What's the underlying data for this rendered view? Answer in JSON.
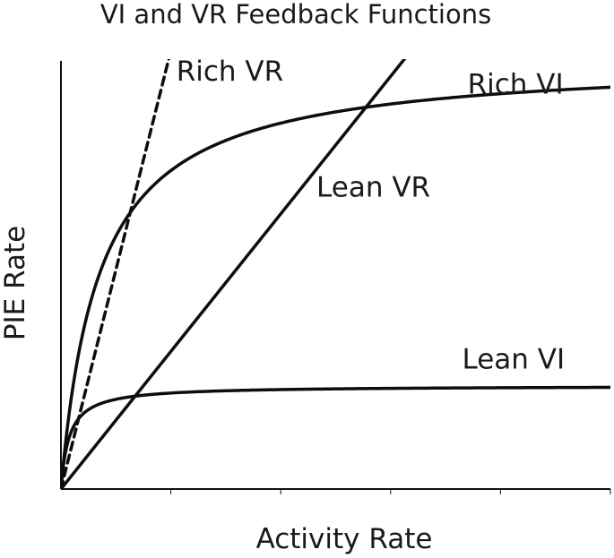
{
  "chart_data": {
    "type": "line",
    "title": "VI and VR Feedback Functions",
    "xlabel": "Activity Rate",
    "ylabel": "PIE Rate",
    "xlim": [
      0,
      100
    ],
    "ylim": [
      0,
      100
    ],
    "x_tick_count": 5,
    "series": [
      {
        "name": "Rich VR",
        "kind": "linear",
        "slope": 5.1,
        "line_style": "dashed",
        "color": "#0d0d0d"
      },
      {
        "name": "Lean VR",
        "kind": "linear",
        "slope": 1.6,
        "line_style": "solid",
        "color": "#0d0d0d"
      },
      {
        "name": "Rich VI",
        "kind": "saturating",
        "max": 100,
        "half_saturation": 7,
        "line_style": "solid",
        "color": "#0d0d0d"
      },
      {
        "name": "Lean VI",
        "kind": "saturating",
        "max": 24,
        "half_saturation": 1.5,
        "line_style": "solid",
        "color": "#0d0d0d"
      }
    ],
    "annotations": [
      {
        "series": "Rich VR",
        "text": "Rich VR",
        "x": 21,
        "y": 95
      },
      {
        "series": "Rich VI",
        "text": "Rich VI",
        "x": 74,
        "y": 92
      },
      {
        "series": "Lean VR",
        "text": "Lean VR",
        "x": 46.5,
        "y": 68
      },
      {
        "series": "Lean VI",
        "text": "Lean VI",
        "x": 73,
        "y": 28
      }
    ]
  }
}
